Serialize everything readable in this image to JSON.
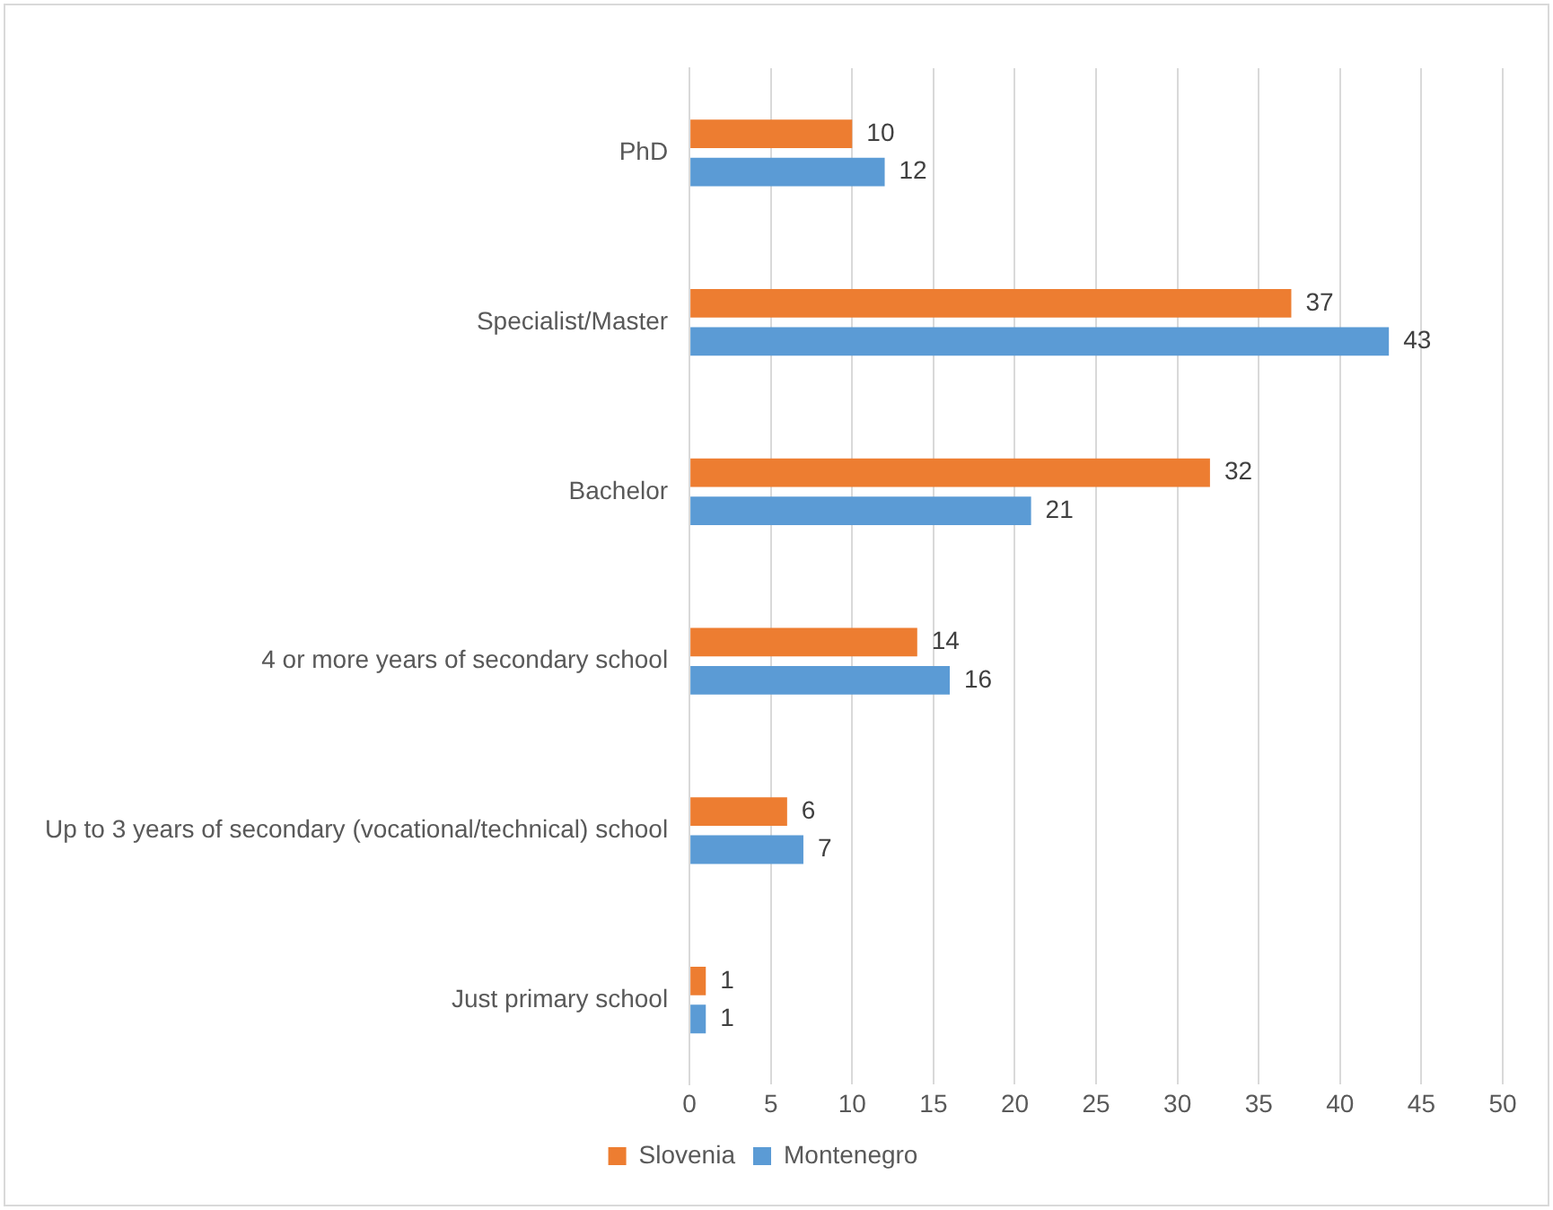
{
  "chart_data": {
    "type": "bar",
    "orientation": "horizontal",
    "categories": [
      "PhD",
      "Specialist/Master",
      "Bachelor",
      "4 or more years of secondary school",
      "Up to 3 years of secondary (vocational/technical) school",
      "Just primary school"
    ],
    "series": [
      {
        "name": "Slovenia",
        "color": "#ed7d31",
        "values": [
          10,
          37,
          32,
          14,
          6,
          1
        ]
      },
      {
        "name": "Montenegro",
        "color": "#5b9bd5",
        "values": [
          12,
          43,
          21,
          16,
          7,
          1
        ]
      }
    ],
    "xlim": [
      0,
      50
    ],
    "xticks": [
      0,
      5,
      10,
      15,
      20,
      25,
      30,
      35,
      40,
      45,
      50
    ],
    "grid": "x",
    "legend": "bottom",
    "data_labels": true
  }
}
